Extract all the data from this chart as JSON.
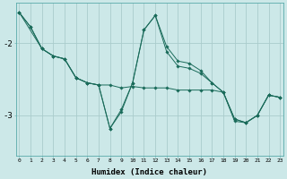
{
  "background_color": "#cce8e8",
  "grid_color": "#aacccc",
  "line_color": "#1a6b5a",
  "x_label": "Humidex (Indice chaleur)",
  "x_ticks": [
    0,
    1,
    2,
    3,
    4,
    5,
    6,
    7,
    8,
    9,
    10,
    11,
    12,
    13,
    14,
    15,
    16,
    17,
    18,
    19,
    20,
    21,
    22,
    23
  ],
  "y_ticks": [
    -2,
    -3
  ],
  "xlim": [
    -0.3,
    23.3
  ],
  "ylim": [
    -3.55,
    -1.45
  ],
  "series": [
    {
      "x": [
        0,
        1,
        2,
        3,
        4,
        5,
        6,
        7,
        8,
        9,
        10,
        11,
        12,
        13,
        14,
        15,
        16,
        17,
        18,
        19,
        20,
        21,
        22,
        23
      ],
      "y": [
        -1.58,
        -1.78,
        -2.08,
        -2.18,
        -2.22,
        -2.48,
        -2.55,
        -2.58,
        -2.58,
        -2.62,
        -2.6,
        -2.62,
        -2.62,
        -2.62,
        -2.65,
        -2.65,
        -2.65,
        -2.65,
        -2.68,
        -3.05,
        -3.1,
        -3.0,
        -2.72,
        -2.75
      ]
    },
    {
      "x": [
        0,
        1,
        2,
        3,
        4,
        5,
        6,
        7,
        8,
        9,
        10,
        11,
        12,
        13,
        14,
        15,
        16,
        17,
        18,
        19,
        20,
        21,
        22,
        23
      ],
      "y": [
        -1.58,
        -1.78,
        -2.08,
        -2.18,
        -2.22,
        -2.48,
        -2.55,
        -2.58,
        -3.18,
        -2.95,
        -2.55,
        -1.82,
        -1.62,
        -2.05,
        -2.25,
        -2.28,
        -2.38,
        -2.55,
        -2.68,
        -3.05,
        -3.1,
        -3.0,
        -2.72,
        -2.75
      ]
    },
    {
      "x": [
        0,
        2,
        3,
        4,
        5,
        6,
        7,
        8,
        9,
        10,
        11,
        12,
        13,
        14,
        15,
        16,
        17,
        18,
        19,
        20,
        21,
        22,
        23
      ],
      "y": [
        -1.58,
        -2.08,
        -2.18,
        -2.22,
        -2.48,
        -2.55,
        -2.58,
        -3.18,
        -2.92,
        -2.55,
        -1.82,
        -1.62,
        -2.12,
        -2.32,
        -2.35,
        -2.42,
        -2.55,
        -2.68,
        -3.08,
        -3.1,
        -3.0,
        -2.72,
        -2.75
      ]
    }
  ]
}
